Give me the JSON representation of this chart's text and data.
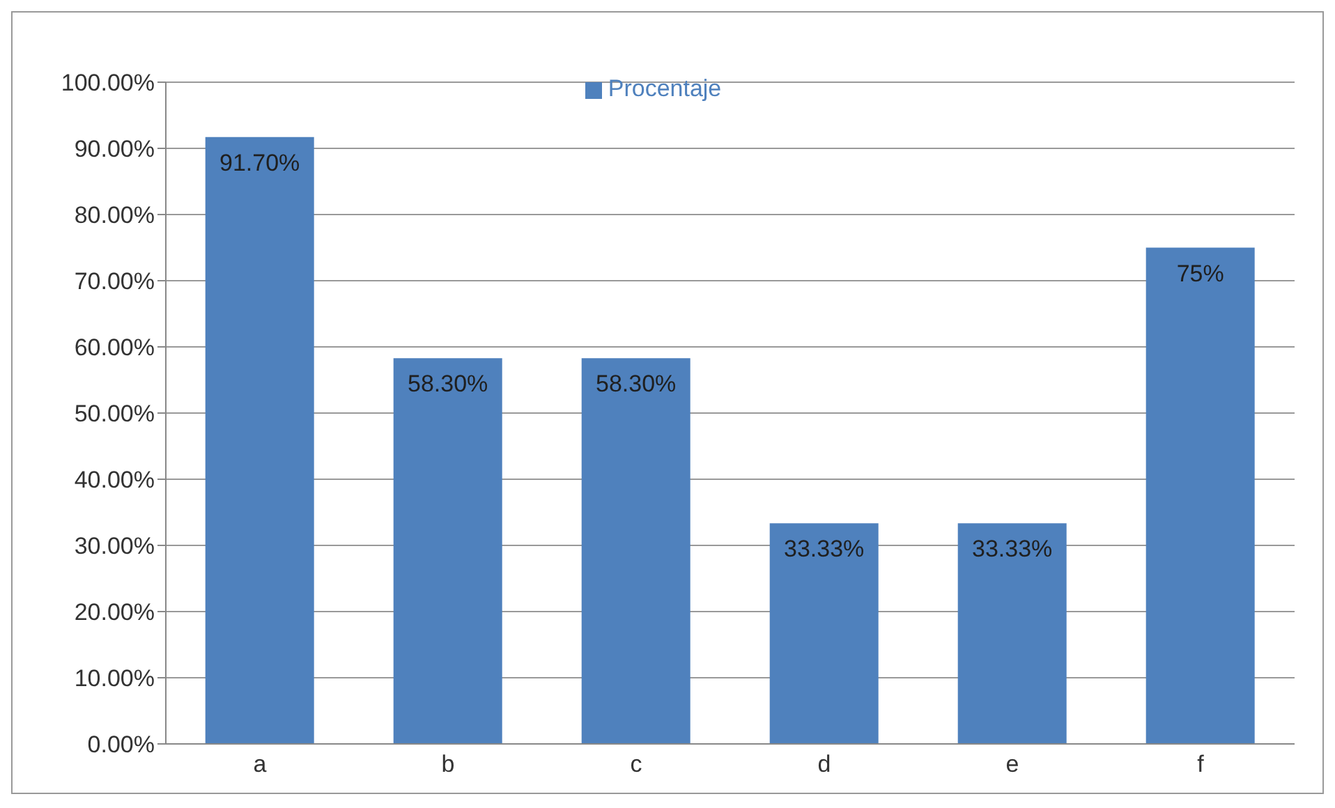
{
  "chart_data": {
    "type": "bar",
    "categories": [
      "a",
      "b",
      "c",
      "d",
      "e",
      "f"
    ],
    "series": [
      {
        "name": "Procentaje",
        "color": "#4f81bd",
        "values": [
          91.7,
          58.3,
          58.3,
          33.33,
          33.33,
          75
        ],
        "value_labels": [
          "91.70%",
          "58.30%",
          "58.30%",
          "33.33%",
          "33.33%",
          "75%"
        ]
      }
    ],
    "ylim": [
      0,
      100
    ],
    "yticks": [
      {
        "value": 0,
        "label": "0.00%"
      },
      {
        "value": 10,
        "label": "10.00%"
      },
      {
        "value": 20,
        "label": "20.00%"
      },
      {
        "value": 30,
        "label": "30.00%"
      },
      {
        "value": 40,
        "label": "40.00%"
      },
      {
        "value": 50,
        "label": "50.00%"
      },
      {
        "value": 60,
        "label": "60.00%"
      },
      {
        "value": 70,
        "label": "70.00%"
      },
      {
        "value": 80,
        "label": "80.00%"
      },
      {
        "value": 90,
        "label": "90.00%"
      },
      {
        "value": 100,
        "label": "100.00%"
      }
    ],
    "grid": "y",
    "legend": "top"
  }
}
